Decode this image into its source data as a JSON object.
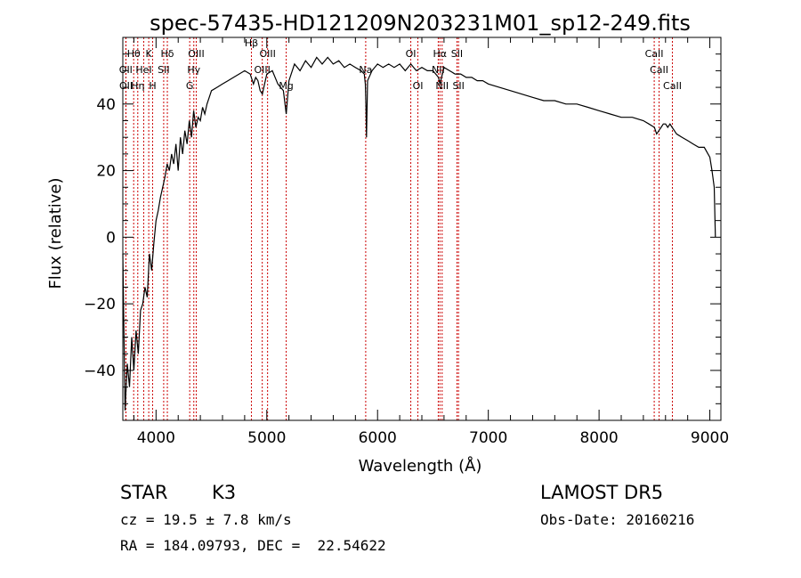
{
  "chart_data": {
    "type": "line",
    "title": "spec-57435-HD121209N203231M01_sp12-249.fits",
    "xlabel": "Wavelength (Å)",
    "ylabel": "Flux (relative)",
    "xlim": [
      3700,
      9100
    ],
    "ylim": [
      -55,
      60
    ],
    "xticks": [
      4000,
      5000,
      6000,
      7000,
      8000,
      9000
    ],
    "xtick_labels": [
      "4000",
      "5000",
      "6000",
      "7000",
      "8000",
      "9000"
    ],
    "yticks": [
      -40,
      -20,
      0,
      20,
      40
    ],
    "ytick_labels": [
      "−40",
      "−20",
      "0",
      "20",
      "40"
    ],
    "grid": false,
    "line_color": "#000000",
    "marker_color": "#cc0000",
    "series": [
      {
        "x": [
          3700,
          3720,
          3740,
          3760,
          3780,
          3800,
          3820,
          3840,
          3860,
          3880,
          3900,
          3920,
          3940,
          3960,
          3980,
          4000,
          4020,
          4040,
          4060,
          4080,
          4100,
          4120,
          4140,
          4160,
          4180,
          4200,
          4220,
          4240,
          4260,
          4280,
          4300,
          4320,
          4340,
          4360,
          4380,
          4400,
          4420,
          4440,
          4460,
          4480,
          4500,
          4550,
          4600,
          4650,
          4700,
          4750,
          4800,
          4850,
          4880,
          4900,
          4920,
          4940,
          4960,
          4980,
          5000,
          5050,
          5100,
          5150,
          5175,
          5200,
          5250,
          5300,
          5350,
          5400,
          5450,
          5500,
          5550,
          5600,
          5650,
          5700,
          5750,
          5800,
          5850,
          5880,
          5890,
          5895,
          5900,
          5910,
          5950,
          6000,
          6050,
          6100,
          6150,
          6200,
          6250,
          6300,
          6350,
          6400,
          6450,
          6500,
          6550,
          6563,
          6600,
          6650,
          6700,
          6750,
          6800,
          6850,
          6900,
          6950,
          7000,
          7100,
          7200,
          7300,
          7400,
          7500,
          7600,
          7700,
          7800,
          7900,
          8000,
          8100,
          8200,
          8300,
          8400,
          8450,
          8500,
          8520,
          8540,
          8560,
          8580,
          8600,
          8620,
          8640,
          8660,
          8680,
          8700,
          8750,
          8800,
          8850,
          8900,
          8950,
          9000,
          9020,
          9040,
          9050
        ],
        "values": [
          -5,
          -52,
          -38,
          -45,
          -30,
          -40,
          -28,
          -35,
          -22,
          -20,
          -15,
          -18,
          -5,
          -10,
          -2,
          5,
          8,
          12,
          15,
          18,
          22,
          20,
          25,
          22,
          28,
          20,
          30,
          25,
          32,
          28,
          35,
          30,
          38,
          33,
          36,
          35,
          39,
          37,
          40,
          42,
          44,
          45,
          46,
          47,
          48,
          49,
          50,
          49,
          46,
          48,
          47,
          44,
          43,
          46,
          49,
          50,
          46,
          44,
          37,
          47,
          52,
          50,
          53,
          51,
          54,
          52,
          54,
          52,
          53,
          51,
          52,
          51,
          50,
          49,
          46,
          39,
          30,
          47,
          50,
          52,
          51,
          52,
          51,
          52,
          50,
          52,
          50,
          51,
          50,
          50,
          48,
          46,
          51,
          50,
          49,
          49,
          48,
          48,
          47,
          47,
          46,
          45,
          44,
          43,
          42,
          41,
          41,
          40,
          40,
          39,
          38,
          37,
          36,
          36,
          35,
          34,
          33,
          31,
          32,
          33,
          34,
          34,
          33,
          34,
          33,
          32,
          31,
          30,
          29,
          28,
          27,
          27,
          24,
          20,
          15,
          0
        ]
      }
    ],
    "lines": [
      {
        "label": "Hθ",
        "x": 3798,
        "row": 1
      },
      {
        "label": "OII",
        "x": 3727,
        "row": 2
      },
      {
        "label": "Hη",
        "x": 3835,
        "row": 3
      },
      {
        "label": "OII",
        "x": 3729,
        "row": 3
      },
      {
        "label": "K",
        "x": 3934,
        "row": 1
      },
      {
        "label": "HeI",
        "x": 3889,
        "row": 2
      },
      {
        "label": "H",
        "x": 3969,
        "row": 3
      },
      {
        "label": "Hδ",
        "x": 4102,
        "row": 1
      },
      {
        "label": "SII",
        "x": 4069,
        "row": 2
      },
      {
        "label": "OIII",
        "x": 4363,
        "row": 1
      },
      {
        "label": "Hγ",
        "x": 4341,
        "row": 2
      },
      {
        "label": "G",
        "x": 4304,
        "row": 3
      },
      {
        "label": "OIII",
        "x": 5007,
        "row": 1
      },
      {
        "label": "OIII",
        "x": 4959,
        "row": 2
      },
      {
        "label": "Mg",
        "x": 5175,
        "row": 3
      },
      {
        "label": "Hβ",
        "x": 4861,
        "row": 0
      },
      {
        "label": "Na",
        "x": 5893,
        "row": 2
      },
      {
        "label": "OI",
        "x": 6300,
        "row": 1
      },
      {
        "label": "OI",
        "x": 6364,
        "row": 3
      },
      {
        "label": "Hα",
        "x": 6563,
        "row": 1
      },
      {
        "label": "NII",
        "x": 6548,
        "row": 2
      },
      {
        "label": "SII",
        "x": 6717,
        "row": 1
      },
      {
        "label": "NII",
        "x": 6583,
        "row": 3
      },
      {
        "label": "SII",
        "x": 6731,
        "row": 3
      },
      {
        "label": "CaII",
        "x": 8498,
        "row": 1
      },
      {
        "label": "CaII",
        "x": 8542,
        "row": 2
      },
      {
        "label": "CaII",
        "x": 8662,
        "row": 3
      }
    ]
  },
  "info": {
    "object_type": "STAR",
    "subclass": "K3",
    "survey": "LAMOST DR5",
    "redshift": "cz = 19.5 ± 7.8 km/s",
    "obs_date": "Obs-Date: 20160216",
    "coords": "RA = 184.09793, DEC =  22.54622"
  }
}
